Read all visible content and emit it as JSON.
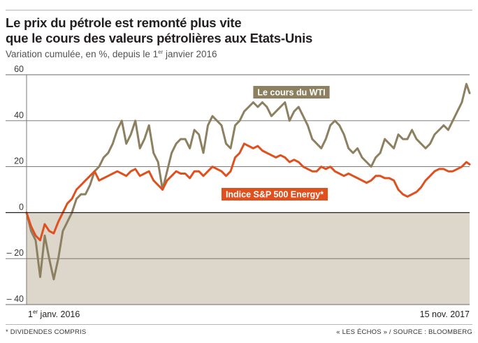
{
  "header": {
    "title_line1": "Le prix du pétrole est remonté plus vite",
    "title_line2": "que le cours des valeurs pétrolières aux Etats-Unis",
    "subtitle_before": "Variation cumulée, en %, depuis le 1",
    "subtitle_sup": "er",
    "subtitle_after": " janvier 2016"
  },
  "footer": {
    "footnote": "* DIVIDENDES COMPRIS",
    "source": "« LES ÉCHOS » / SOURCE : BLOOMBERG"
  },
  "colors": {
    "wti": "#8c8060",
    "sp500": "#e0501e",
    "negative_area": "#ddd6cb",
    "grid": "#6e6a66",
    "zero_line": "#231f20"
  },
  "chart_data": {
    "type": "line",
    "ylim": [
      -40,
      60
    ],
    "yticks": [
      60,
      40,
      20,
      0,
      -20,
      -40
    ],
    "ytick_labels": [
      "60",
      "40",
      "20",
      "0",
      "– 20",
      "– 40"
    ],
    "x_start_label": {
      "main": "1",
      "sup": "er",
      "rest": " janv. 2016"
    },
    "x_end_label": "15 nov. 2017",
    "x_range": [
      "2016-01-01",
      "2017-11-15"
    ],
    "negative_area_shaded": true,
    "grid": true,
    "series": [
      {
        "name": "Le cours du WTI",
        "label_style": "boxed",
        "x": [
          "2016-01-01",
          "2016-01-08",
          "2016-01-15",
          "2016-01-22",
          "2016-01-29",
          "2016-02-05",
          "2016-02-12",
          "2016-02-19",
          "2016-02-26",
          "2016-03-04",
          "2016-03-11",
          "2016-03-18",
          "2016-03-25",
          "2016-04-01",
          "2016-04-08",
          "2016-04-15",
          "2016-04-22",
          "2016-04-29",
          "2016-05-06",
          "2016-05-13",
          "2016-05-20",
          "2016-05-27",
          "2016-06-03",
          "2016-06-10",
          "2016-06-17",
          "2016-06-24",
          "2016-07-01",
          "2016-07-08",
          "2016-07-15",
          "2016-07-22",
          "2016-07-29",
          "2016-08-05",
          "2016-08-12",
          "2016-08-19",
          "2016-08-26",
          "2016-09-02",
          "2016-09-09",
          "2016-09-16",
          "2016-09-23",
          "2016-09-30",
          "2016-10-07",
          "2016-10-14",
          "2016-10-21",
          "2016-10-28",
          "2016-11-04",
          "2016-11-11",
          "2016-11-18",
          "2016-11-25",
          "2016-12-02",
          "2016-12-09",
          "2016-12-16",
          "2016-12-23",
          "2016-12-30",
          "2017-01-06",
          "2017-01-13",
          "2017-01-20",
          "2017-01-27",
          "2017-02-03",
          "2017-02-10",
          "2017-02-17",
          "2017-02-24",
          "2017-03-03",
          "2017-03-10",
          "2017-03-17",
          "2017-03-24",
          "2017-03-31",
          "2017-04-07",
          "2017-04-14",
          "2017-04-21",
          "2017-04-28",
          "2017-05-05",
          "2017-05-12",
          "2017-05-19",
          "2017-05-26",
          "2017-06-02",
          "2017-06-09",
          "2017-06-16",
          "2017-06-23",
          "2017-06-30",
          "2017-07-07",
          "2017-07-14",
          "2017-07-21",
          "2017-07-28",
          "2017-08-04",
          "2017-08-11",
          "2017-08-18",
          "2017-08-25",
          "2017-09-01",
          "2017-09-08",
          "2017-09-15",
          "2017-09-22",
          "2017-09-29",
          "2017-10-06",
          "2017-10-13",
          "2017-10-20",
          "2017-10-27",
          "2017-11-03",
          "2017-11-10",
          "2017-11-15"
        ],
        "values": [
          0,
          -8,
          -12,
          -28,
          -10,
          -20,
          -29,
          -20,
          -8,
          -4,
          0,
          6,
          8,
          8,
          12,
          18,
          20,
          24,
          26,
          30,
          36,
          40,
          30,
          34,
          40,
          28,
          32,
          38,
          26,
          22,
          10,
          18,
          26,
          30,
          32,
          32,
          28,
          36,
          34,
          26,
          38,
          42,
          40,
          38,
          30,
          28,
          38,
          40,
          44,
          46,
          48,
          46,
          48,
          46,
          42,
          44,
          46,
          48,
          40,
          44,
          46,
          42,
          38,
          32,
          30,
          28,
          32,
          38,
          40,
          38,
          34,
          28,
          26,
          28,
          24,
          22,
          20,
          24,
          26,
          32,
          30,
          28,
          34,
          32,
          32,
          36,
          32,
          30,
          28,
          30,
          34,
          36,
          38,
          36,
          40,
          44,
          48,
          56,
          52
        ]
      },
      {
        "name": "Indice S&P 500 Energy*",
        "label_style": "boxed",
        "x": [
          "2016-01-01",
          "2016-01-08",
          "2016-01-15",
          "2016-01-22",
          "2016-01-29",
          "2016-02-05",
          "2016-02-12",
          "2016-02-19",
          "2016-02-26",
          "2016-03-04",
          "2016-03-11",
          "2016-03-18",
          "2016-03-25",
          "2016-04-01",
          "2016-04-08",
          "2016-04-15",
          "2016-04-22",
          "2016-04-29",
          "2016-05-06",
          "2016-05-13",
          "2016-05-20",
          "2016-05-27",
          "2016-06-03",
          "2016-06-10",
          "2016-06-17",
          "2016-06-24",
          "2016-07-01",
          "2016-07-08",
          "2016-07-15",
          "2016-07-22",
          "2016-07-29",
          "2016-08-05",
          "2016-08-12",
          "2016-08-19",
          "2016-08-26",
          "2016-09-02",
          "2016-09-09",
          "2016-09-16",
          "2016-09-23",
          "2016-09-30",
          "2016-10-07",
          "2016-10-14",
          "2016-10-21",
          "2016-10-28",
          "2016-11-04",
          "2016-11-11",
          "2016-11-18",
          "2016-11-25",
          "2016-12-02",
          "2016-12-09",
          "2016-12-16",
          "2016-12-23",
          "2016-12-30",
          "2017-01-06",
          "2017-01-13",
          "2017-01-20",
          "2017-01-27",
          "2017-02-03",
          "2017-02-10",
          "2017-02-17",
          "2017-02-24",
          "2017-03-03",
          "2017-03-10",
          "2017-03-17",
          "2017-03-24",
          "2017-03-31",
          "2017-04-07",
          "2017-04-14",
          "2017-04-21",
          "2017-04-28",
          "2017-05-05",
          "2017-05-12",
          "2017-05-19",
          "2017-05-26",
          "2017-06-02",
          "2017-06-09",
          "2017-06-16",
          "2017-06-23",
          "2017-06-30",
          "2017-07-07",
          "2017-07-14",
          "2017-07-21",
          "2017-07-28",
          "2017-08-04",
          "2017-08-11",
          "2017-08-18",
          "2017-08-25",
          "2017-09-01",
          "2017-09-08",
          "2017-09-15",
          "2017-09-22",
          "2017-09-29",
          "2017-10-06",
          "2017-10-13",
          "2017-10-20",
          "2017-10-27",
          "2017-11-03",
          "2017-11-10",
          "2017-11-15"
        ],
        "values": [
          0,
          -6,
          -10,
          -12,
          -5,
          -8,
          -9,
          -4,
          0,
          4,
          6,
          10,
          12,
          14,
          16,
          18,
          14,
          15,
          16,
          17,
          18,
          17,
          16,
          18,
          19,
          16,
          17,
          18,
          14,
          12,
          10,
          14,
          16,
          18,
          17,
          17,
          15,
          18,
          18,
          16,
          18,
          20,
          19,
          18,
          16,
          18,
          24,
          26,
          30,
          29,
          28,
          29,
          27,
          26,
          25,
          24,
          25,
          24,
          22,
          23,
          22,
          20,
          19,
          18,
          18,
          20,
          19,
          20,
          18,
          17,
          16,
          17,
          16,
          15,
          14,
          13,
          14,
          16,
          16,
          15,
          15,
          14,
          10,
          8,
          7,
          8,
          9,
          11,
          14,
          16,
          18,
          19,
          19,
          18,
          18,
          19,
          20,
          22,
          21
        ]
      }
    ]
  }
}
